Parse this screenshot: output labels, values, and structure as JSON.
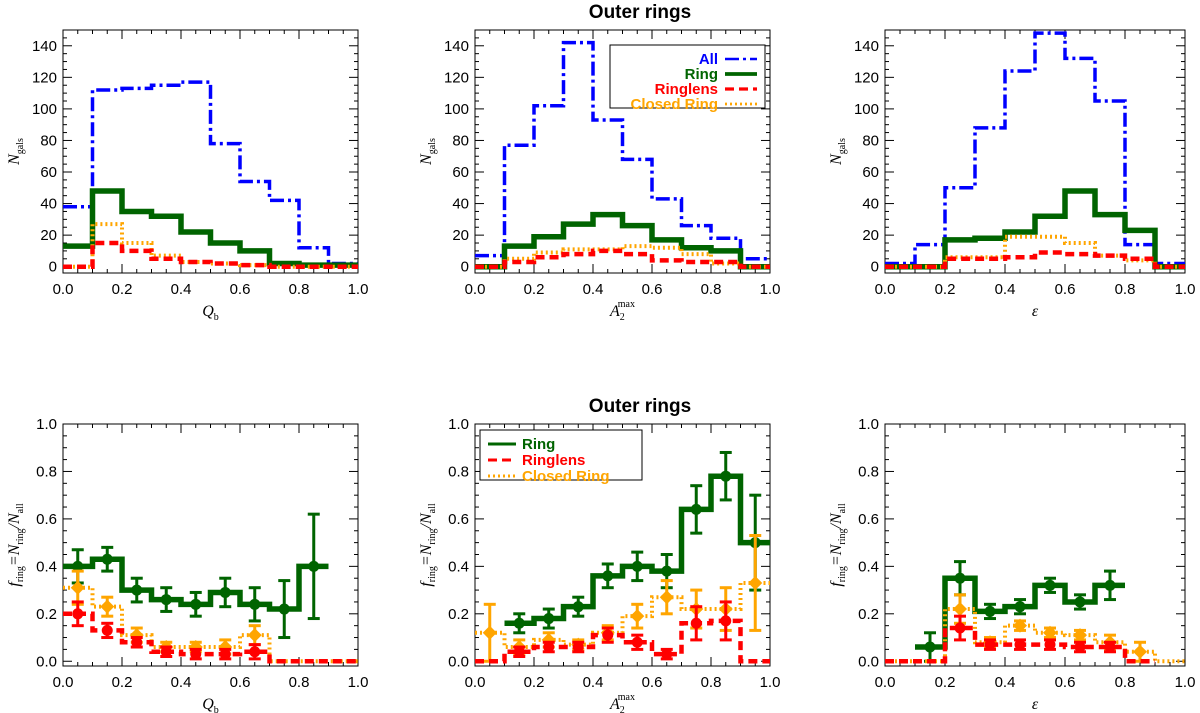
{
  "title": "Outer rings",
  "colors": {
    "all": "#0000ff",
    "ring": "#006400",
    "ringlens": "#ff0000",
    "closed": "#ffa500"
  },
  "labels": {
    "ngals": "N",
    "ngals_sub": "gals",
    "fring": "f",
    "fring_sub": "ring",
    "fring_eq": "=N",
    "fring_eq_sub": "ring",
    "fring_div": "/N",
    "fring_div_sub": "all",
    "qb": "Q",
    "qb_sub": "b",
    "a2": "A",
    "a2_sub": "2",
    "a2_sup": "max",
    "eps": "ε"
  },
  "legend_top": [
    "All",
    "Ring",
    "Ringlens",
    "Closed Ring"
  ],
  "legend_bottom": [
    "Ring",
    "Ringlens",
    "Closed Ring"
  ],
  "chart_data": [
    {
      "type": "histogram",
      "panel": "top-left",
      "xlabel": "Q_b",
      "ylabel": "N_gals",
      "xlim": [
        0,
        1
      ],
      "ylim": [
        -4,
        150
      ],
      "xticks": [
        "0.0",
        "0.2",
        "0.4",
        "0.6",
        "0.8",
        "1.0"
      ],
      "yticks": [
        "0",
        "20",
        "40",
        "60",
        "80",
        "100",
        "120",
        "140"
      ],
      "bins": [
        0,
        0.1,
        0.2,
        0.3,
        0.4,
        0.5,
        0.6,
        0.7,
        0.8,
        0.9,
        1.0
      ],
      "series": [
        {
          "name": "All",
          "values": [
            38,
            112,
            113,
            115,
            117,
            78,
            54,
            42,
            12,
            2
          ]
        },
        {
          "name": "Ring",
          "values": [
            13,
            48,
            35,
            32,
            22,
            15,
            10,
            2,
            1,
            1
          ]
        },
        {
          "name": "Ringlens",
          "values": [
            0,
            15,
            10,
            5,
            3,
            2,
            1,
            0,
            0,
            0
          ]
        },
        {
          "name": "Closed Ring",
          "values": [
            0,
            27,
            15,
            7,
            3,
            2,
            1,
            0,
            0,
            0
          ]
        }
      ]
    },
    {
      "type": "histogram",
      "panel": "top-middle",
      "xlabel": "A_2^max",
      "ylabel": "N_gals",
      "xlim": [
        0,
        1
      ],
      "ylim": [
        -4,
        150
      ],
      "xticks": [
        "0.0",
        "0.2",
        "0.4",
        "0.6",
        "0.8",
        "1.0"
      ],
      "yticks": [
        "0",
        "20",
        "40",
        "60",
        "80",
        "100",
        "120",
        "140"
      ],
      "legend_position": "top-right",
      "bins": [
        0,
        0.1,
        0.2,
        0.3,
        0.4,
        0.5,
        0.6,
        0.7,
        0.8,
        0.9,
        1.0
      ],
      "series": [
        {
          "name": "All",
          "values": [
            7,
            77,
            102,
            142,
            93,
            68,
            43,
            26,
            18,
            5
          ]
        },
        {
          "name": "Ring",
          "values": [
            0,
            13,
            19,
            27,
            33,
            26,
            17,
            12,
            10,
            0
          ]
        },
        {
          "name": "Ringlens",
          "values": [
            0,
            3,
            6,
            8,
            10,
            8,
            4,
            3,
            3,
            0
          ]
        },
        {
          "name": "Closed Ring",
          "values": [
            0,
            5,
            9,
            11,
            11,
            13,
            12,
            8,
            2,
            0
          ]
        }
      ]
    },
    {
      "type": "histogram",
      "panel": "top-right",
      "xlabel": "ε",
      "ylabel": "N_gals",
      "xlim": [
        0,
        1
      ],
      "ylim": [
        -4,
        150
      ],
      "xticks": [
        "0.0",
        "0.2",
        "0.4",
        "0.6",
        "0.8",
        "1.0"
      ],
      "yticks": [
        "0",
        "20",
        "40",
        "60",
        "80",
        "100",
        "120",
        "140"
      ],
      "bins": [
        0,
        0.1,
        0.2,
        0.3,
        0.4,
        0.5,
        0.6,
        0.7,
        0.8,
        0.9,
        1.0
      ],
      "series": [
        {
          "name": "All",
          "values": [
            2,
            14,
            50,
            88,
            124,
            148,
            132,
            105,
            14,
            2
          ]
        },
        {
          "name": "Ring",
          "values": [
            0,
            0,
            17,
            18,
            22,
            32,
            48,
            33,
            23,
            0
          ]
        },
        {
          "name": "Ringlens",
          "values": [
            0,
            0,
            5,
            5,
            6,
            9,
            8,
            7,
            5,
            0
          ]
        },
        {
          "name": "Closed Ring",
          "values": [
            0,
            0,
            6,
            6,
            19,
            19,
            15,
            7,
            4,
            0
          ]
        }
      ]
    },
    {
      "type": "histogram",
      "panel": "bottom-left",
      "xlabel": "Q_b",
      "ylabel": "f_ring=N_ring/N_all",
      "xlim": [
        0,
        1
      ],
      "ylim": [
        -0.02,
        1.0
      ],
      "xticks": [
        "0.0",
        "0.2",
        "0.4",
        "0.6",
        "0.8",
        "1.0"
      ],
      "yticks": [
        "0.0",
        "0.2",
        "0.4",
        "0.6",
        "0.8",
        "1.0"
      ],
      "x": [
        0.05,
        0.15,
        0.25,
        0.35,
        0.45,
        0.55,
        0.65,
        0.75,
        0.85,
        0.95
      ],
      "series": [
        {
          "name": "Ring",
          "values": [
            0.4,
            0.43,
            0.3,
            0.26,
            0.24,
            0.29,
            0.24,
            0.22,
            0.4,
            null
          ],
          "err": [
            0.07,
            0.05,
            0.05,
            0.05,
            0.05,
            0.06,
            0.07,
            0.12,
            0.22,
            null
          ]
        },
        {
          "name": "Ringlens",
          "values": [
            0.2,
            0.13,
            0.08,
            0.04,
            0.03,
            0.03,
            0.04,
            0.0,
            0.0,
            0.0
          ],
          "err": [
            0.05,
            0.03,
            0.02,
            0.02,
            0.02,
            0.02,
            0.03,
            0.0,
            0.0,
            0.0
          ]
        },
        {
          "name": "Closed Ring",
          "values": [
            0.31,
            0.23,
            0.11,
            0.06,
            0.06,
            0.06,
            0.11,
            0.0,
            0.0,
            0.0
          ],
          "err": [
            0.07,
            0.04,
            0.03,
            0.02,
            0.02,
            0.03,
            0.04,
            0.0,
            0.0,
            0.0
          ]
        }
      ]
    },
    {
      "type": "histogram",
      "panel": "bottom-middle",
      "xlabel": "A_2^max",
      "ylabel": "f_ring=N_ring/N_all",
      "xlim": [
        0,
        1
      ],
      "ylim": [
        -0.02,
        1.0
      ],
      "xticks": [
        "0.0",
        "0.2",
        "0.4",
        "0.6",
        "0.8",
        "1.0"
      ],
      "yticks": [
        "0.0",
        "0.2",
        "0.4",
        "0.6",
        "0.8",
        "1.0"
      ],
      "legend_position": "top-left",
      "x": [
        0.05,
        0.15,
        0.25,
        0.35,
        0.45,
        0.55,
        0.65,
        0.75,
        0.85,
        0.95
      ],
      "series": [
        {
          "name": "Ring",
          "values": [
            null,
            0.16,
            0.18,
            0.23,
            0.36,
            0.4,
            0.38,
            0.64,
            0.78,
            0.5
          ],
          "err": [
            null,
            0.04,
            0.04,
            0.04,
            0.05,
            0.06,
            0.07,
            0.1,
            0.1,
            0.2
          ]
        },
        {
          "name": "Ringlens",
          "values": [
            0.0,
            0.04,
            0.06,
            0.06,
            0.11,
            0.08,
            0.03,
            0.16,
            0.17,
            0.0
          ],
          "err": [
            0.0,
            0.02,
            0.02,
            0.02,
            0.03,
            0.03,
            0.02,
            0.07,
            0.08,
            0.0
          ]
        },
        {
          "name": "Closed Ring",
          "values": [
            0.12,
            0.06,
            0.09,
            0.07,
            0.12,
            0.19,
            0.27,
            0.22,
            0.22,
            0.33
          ],
          "err": [
            0.12,
            0.03,
            0.03,
            0.02,
            0.03,
            0.05,
            0.07,
            0.08,
            0.09,
            0.2
          ]
        }
      ]
    },
    {
      "type": "histogram",
      "panel": "bottom-right",
      "xlabel": "ε",
      "ylabel": "f_ring=N_ring/N_all",
      "xlim": [
        0,
        1
      ],
      "ylim": [
        -0.02,
        1.0
      ],
      "xticks": [
        "0.0",
        "0.2",
        "0.4",
        "0.6",
        "0.8",
        "1.0"
      ],
      "yticks": [
        "0.0",
        "0.2",
        "0.4",
        "0.6",
        "0.8",
        "1.0"
      ],
      "x": [
        0.05,
        0.15,
        0.25,
        0.35,
        0.45,
        0.55,
        0.65,
        0.75,
        0.85,
        0.95
      ],
      "series": [
        {
          "name": "Ring",
          "values": [
            null,
            0.06,
            0.35,
            0.21,
            0.23,
            0.32,
            0.25,
            0.32,
            null,
            null
          ],
          "err": [
            null,
            0.06,
            0.07,
            0.03,
            0.03,
            0.03,
            0.03,
            0.06,
            null,
            null
          ]
        },
        {
          "name": "Ringlens",
          "values": [
            0.0,
            0.0,
            0.14,
            0.07,
            0.07,
            0.07,
            0.06,
            0.06,
            0.0,
            null
          ],
          "err": [
            0.0,
            0.0,
            0.05,
            0.02,
            0.02,
            0.02,
            0.02,
            0.02,
            0.0,
            null
          ]
        },
        {
          "name": "Closed Ring",
          "values": [
            0.0,
            0.0,
            0.22,
            0.08,
            0.15,
            0.12,
            0.11,
            0.08,
            0.04,
            0.0
          ],
          "err": [
            0.0,
            0.0,
            0.06,
            0.02,
            0.02,
            0.02,
            0.02,
            0.03,
            0.04,
            0.0
          ]
        }
      ]
    }
  ]
}
